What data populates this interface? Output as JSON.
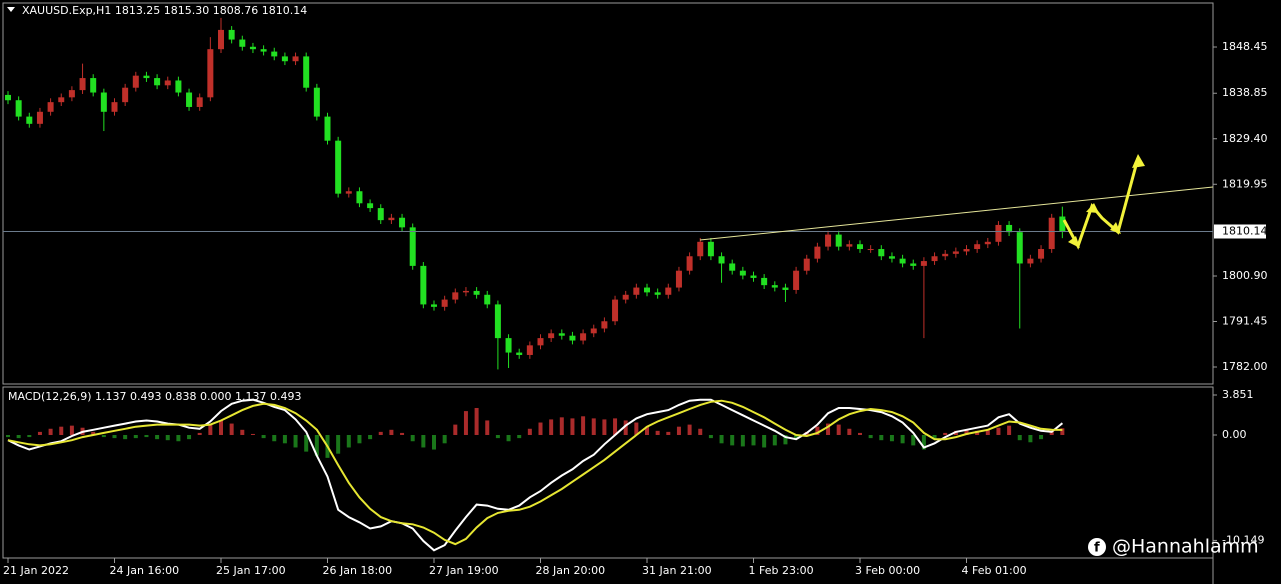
{
  "chart_data": [
    {
      "type": "candlestick",
      "title": "XAUUSD.Exp,H1  1813.25 1815.30 1808.76 1810.14",
      "categories": [
        "21 Jan 2022",
        null,
        null,
        null,
        null,
        null,
        null,
        null,
        null,
        null,
        "24 Jan 16:00",
        null,
        null,
        null,
        null,
        null,
        null,
        null,
        null,
        null,
        "25 Jan 17:00",
        null,
        null,
        null,
        null,
        null,
        null,
        null,
        null,
        null,
        "26 Jan 18:00",
        null,
        null,
        null,
        null,
        null,
        null,
        null,
        null,
        null,
        "27 Jan 19:00",
        null,
        null,
        null,
        null,
        null,
        null,
        null,
        null,
        null,
        "28 Jan 20:00",
        null,
        null,
        null,
        null,
        null,
        null,
        null,
        null,
        null,
        "31 Jan 21:00",
        null,
        null,
        null,
        null,
        null,
        null,
        null,
        null,
        null,
        "1 Feb 23:00",
        null,
        null,
        null,
        null,
        null,
        null,
        null,
        null,
        null,
        "3 Feb 00:00",
        null,
        null,
        null,
        null,
        null,
        null,
        null,
        null,
        null,
        "4 Feb 01:00",
        null,
        null,
        null,
        null,
        null,
        null,
        null,
        null,
        null
      ],
      "open": [
        1838.5,
        1837.4,
        1834,
        1832.5,
        1835,
        1837,
        1838,
        1839.5,
        1842,
        1839,
        1835,
        1837,
        1840,
        1842.5,
        1842,
        1840.5,
        1841.5,
        1839,
        1836,
        1838,
        1848,
        1852,
        1850,
        1848.5,
        1848,
        1847.5,
        1846.5,
        1845.5,
        1846.5,
        1840,
        1834,
        1829,
        1818,
        1818.5,
        1816,
        1815,
        1812.5,
        1813,
        1811,
        1803,
        1795,
        1794.5,
        1796,
        1797.5,
        1797.8,
        1797,
        1795,
        1788,
        1785,
        1784.5,
        1786.5,
        1788,
        1789,
        1788.5,
        1787.5,
        1789,
        1790,
        1791.5,
        1796,
        1797,
        1798.5,
        1797.5,
        1797,
        1798.5,
        1802,
        1805,
        1808,
        1805,
        1803.5,
        1802,
        1801,
        1800.5,
        1799,
        1798.5,
        1798,
        1802,
        1804.5,
        1807,
        1809.5,
        1807,
        1807.5,
        1806.5,
        1806.5,
        1805,
        1804.5,
        1803.5,
        1803,
        1804,
        1805,
        1805.5,
        1806,
        1806.5,
        1807.5,
        1808,
        1811.5,
        1810,
        1803.5,
        1804.5,
        1806.5,
        1813.25
      ],
      "high": [
        1839.3,
        1838.2,
        1834.8,
        1835.8,
        1837.8,
        1838.8,
        1840.3,
        1845,
        1842.8,
        1839.8,
        1837.8,
        1840.8,
        1843.3,
        1843.3,
        1842.8,
        1842.3,
        1842.3,
        1839.8,
        1838.8,
        1850.5,
        1854.5,
        1852.8,
        1850.8,
        1849.3,
        1848.8,
        1848.3,
        1847.3,
        1847.3,
        1847.3,
        1840.8,
        1834.8,
        1829.8,
        1819.3,
        1819.3,
        1816.8,
        1815.8,
        1813.8,
        1813.8,
        1811.8,
        1803.8,
        1795.8,
        1796.8,
        1798.3,
        1798.6,
        1798.6,
        1797.8,
        1795.8,
        1788.8,
        1785.8,
        1787.3,
        1788.8,
        1789.8,
        1789.8,
        1789.3,
        1789.8,
        1790.8,
        1792.3,
        1796.8,
        1797.8,
        1799.3,
        1799.3,
        1798.3,
        1799.3,
        1802.8,
        1805.8,
        1808.8,
        1808.8,
        1805.8,
        1804.3,
        1802.8,
        1801.8,
        1801.3,
        1799.8,
        1799.3,
        1802.8,
        1805.3,
        1807.8,
        1810.3,
        1810.3,
        1808.3,
        1808.3,
        1807.3,
        1807.3,
        1805.8,
        1805.3,
        1804.3,
        1804.8,
        1805.8,
        1806.3,
        1806.8,
        1807.3,
        1808.3,
        1808.8,
        1812.3,
        1812.3,
        1810.8,
        1805.3,
        1807.3,
        1813.8,
        1815.3
      ],
      "low": [
        1836.6,
        1833.2,
        1831.7,
        1831.7,
        1834.2,
        1836.2,
        1837.2,
        1838.7,
        1838.2,
        1831,
        1834.2,
        1836.2,
        1839.2,
        1841.2,
        1839.7,
        1839.7,
        1838.2,
        1835.2,
        1835.2,
        1837.2,
        1847.2,
        1849.2,
        1847.7,
        1847.2,
        1846.7,
        1845.7,
        1844.7,
        1844.7,
        1839.2,
        1833.2,
        1828.2,
        1817.2,
        1817.2,
        1815.2,
        1814.2,
        1811.7,
        1811.7,
        1810.2,
        1802.2,
        1794.2,
        1793.7,
        1793.7,
        1795.2,
        1796.7,
        1796.2,
        1794.2,
        1781.5,
        1781.8,
        1783.7,
        1783.7,
        1785.7,
        1787.2,
        1787.7,
        1786.7,
        1786.7,
        1788.2,
        1789.2,
        1790.7,
        1795.2,
        1796.2,
        1796.7,
        1796.2,
        1796.2,
        1797.7,
        1801.2,
        1804.2,
        1804.2,
        1799.5,
        1801.2,
        1800.2,
        1799.7,
        1798.2,
        1797.7,
        1795.5,
        1797.2,
        1801.2,
        1803.7,
        1806.2,
        1806.2,
        1806.2,
        1805.7,
        1805.7,
        1804.2,
        1803.7,
        1802.7,
        1802.2,
        1788,
        1803.2,
        1804.2,
        1804.7,
        1805.2,
        1805.7,
        1806.7,
        1807.2,
        1809.2,
        1790,
        1802.7,
        1803.7,
        1805.7,
        1808.76
      ],
      "close": [
        1837.4,
        1834,
        1832.5,
        1835,
        1837,
        1838,
        1839.5,
        1842,
        1839,
        1835,
        1837,
        1840,
        1842.5,
        1842,
        1840.5,
        1841.5,
        1839,
        1836,
        1838,
        1848,
        1852,
        1850,
        1848.5,
        1848,
        1847.5,
        1846.5,
        1845.5,
        1846.5,
        1840,
        1834,
        1829,
        1818,
        1818.5,
        1816,
        1815,
        1812.5,
        1813,
        1811,
        1803,
        1795,
        1794.5,
        1796,
        1797.5,
        1797.8,
        1797,
        1795,
        1788,
        1785,
        1784.5,
        1786.5,
        1788,
        1789,
        1788.5,
        1787.5,
        1789,
        1790,
        1791.5,
        1796,
        1797,
        1798.5,
        1797.5,
        1797,
        1798.5,
        1802,
        1805,
        1808,
        1805,
        1803.5,
        1802,
        1801,
        1800.5,
        1799,
        1798.5,
        1798,
        1802,
        1804.5,
        1807,
        1809.5,
        1807,
        1807.5,
        1806.5,
        1806.5,
        1805,
        1804.5,
        1803.5,
        1803,
        1804,
        1805,
        1805.5,
        1806,
        1806.5,
        1807.5,
        1808,
        1811.5,
        1810,
        1803.5,
        1804.5,
        1806.5,
        1813,
        1810.14
      ],
      "up_color": "#c0302a",
      "down_color": "#22e022",
      "current_price": 1810.14,
      "ylim": [
        1778.68,
        1857.59
      ],
      "yticks": [
        1848.45,
        1838.85,
        {
          "value": 1829.4,
          "label": "1829.40"
        },
        1819.95,
        {
          "value": 1800.9,
          "label": "1800.90"
        },
        1791.45,
        {
          "value": 1782,
          "label": "1782.00"
        }
      ]
    },
    {
      "type": "macd",
      "title": "MACD(12,26,9) 1.137 0.493 0.838 0.000 1.137 0.493",
      "series": [
        {
          "color": "#ffffff",
          "values": [
            -0.5,
            -1.0,
            -1.4,
            -1.1,
            -0.8,
            -0.6,
            -0.1,
            0.3,
            0.5,
            0.7,
            0.9,
            1.1,
            1.3,
            1.4,
            1.3,
            1.1,
            1.0,
            0.7,
            0.6,
            1.3,
            2.3,
            3.0,
            3.3,
            3.4,
            3.1,
            2.7,
            2.4,
            1.5,
            0.3,
            -2.0,
            -4.0,
            -7.2,
            -7.9,
            -8.4,
            -9.0,
            -8.8,
            -8.3,
            -8.5,
            -9.0,
            -10.2,
            -11.1,
            -10.6,
            -9.2,
            -7.9,
            -6.7,
            -6.8,
            -7.1,
            -7.2,
            -6.8,
            -6.0,
            -5.4,
            -4.6,
            -3.9,
            -3.3,
            -2.5,
            -1.9,
            -0.9,
            0.0,
            0.9,
            1.6,
            2.0,
            2.2,
            2.4,
            2.9,
            3.3,
            3.4,
            3.4,
            2.9,
            2.4,
            1.9,
            1.4,
            0.9,
            0.4,
            -0.2,
            -0.4,
            0.2,
            1.0,
            2.1,
            2.6,
            2.6,
            2.5,
            2.4,
            2.2,
            1.8,
            1.2,
            0.2,
            -1.2,
            -0.8,
            -0.2,
            0.3,
            0.5,
            0.7,
            0.9,
            1.7,
            2.0,
            1.1,
            0.7,
            0.4,
            0.3,
            1.137
          ]
        },
        {
          "color": "#e6e632",
          "values": [
            -0.5,
            -0.7,
            -0.9,
            -1.0,
            -0.9,
            -0.7,
            -0.5,
            -0.2,
            0.0,
            0.2,
            0.4,
            0.6,
            0.8,
            0.9,
            1.0,
            1.0,
            1.0,
            1.0,
            0.9,
            1.0,
            1.4,
            1.9,
            2.4,
            2.8,
            3.0,
            2.9,
            2.6,
            2.1,
            1.4,
            0.5,
            -1.1,
            -2.9,
            -4.6,
            -6.0,
            -7.1,
            -7.9,
            -8.3,
            -8.5,
            -8.6,
            -8.9,
            -9.4,
            -10.1,
            -10.5,
            -10.0,
            -8.9,
            -8.0,
            -7.5,
            -7.3,
            -7.2,
            -6.9,
            -6.4,
            -5.8,
            -5.2,
            -4.5,
            -3.8,
            -3.1,
            -2.4,
            -1.6,
            -0.8,
            0.0,
            0.8,
            1.3,
            1.7,
            2.1,
            2.5,
            2.9,
            3.2,
            3.3,
            3.1,
            2.7,
            2.2,
            1.7,
            1.1,
            0.5,
            0.0,
            -0.1,
            0.2,
            0.8,
            1.5,
            2.0,
            2.3,
            2.5,
            2.4,
            2.2,
            1.8,
            1.2,
            0.2,
            -0.4,
            -0.4,
            -0.2,
            0.1,
            0.3,
            0.5,
            0.9,
            1.3,
            1.2,
            0.9,
            0.6,
            0.5,
            0.493
          ]
        }
      ],
      "histogram": {
        "up_color": "#c83232",
        "down_color": "#1e8c1e",
        "values": [
          -0.2,
          -0.3,
          -0.2,
          0.3,
          0.6,
          0.8,
          0.9,
          0.7,
          0.3,
          -0.2,
          -0.3,
          -0.4,
          -0.3,
          -0.2,
          -0.4,
          -0.5,
          -0.6,
          -0.4,
          0.2,
          1.0,
          1.4,
          1.1,
          0.5,
          0.1,
          -0.3,
          -0.6,
          -0.8,
          -1.2,
          -1.6,
          -2.0,
          -2.2,
          -1.8,
          -1.2,
          -0.8,
          -0.4,
          0.3,
          0.5,
          0.2,
          -0.6,
          -1.2,
          -1.4,
          -0.8,
          1.0,
          2.3,
          2.6,
          1.4,
          -0.3,
          -0.6,
          -0.3,
          0.6,
          1.2,
          1.5,
          1.7,
          1.6,
          1.8,
          1.6,
          1.5,
          1.6,
          1.4,
          1.2,
          0.8,
          0.4,
          0.3,
          0.8,
          1.0,
          0.6,
          -0.3,
          -0.8,
          -1.0,
          -1.1,
          -1.0,
          -1.2,
          -1.0,
          -0.9,
          -0.4,
          0.3,
          0.8,
          1.1,
          1.0,
          0.6,
          0.2,
          -0.3,
          -0.5,
          -0.6,
          -0.8,
          -1.0,
          -1.4,
          -0.4,
          0.2,
          0.4,
          0.5,
          0.4,
          0.5,
          0.7,
          0.9,
          -0.5,
          -0.7,
          -0.4,
          0.3,
          0.644
        ]
      },
      "ylim": [
        -11.84,
        4.62
      ],
      "yticks": [
        3.851,
        {
          "value": 0,
          "label": "0.00"
        },
        -10.149
      ]
    }
  ],
  "watermark": "@Hannahlamm"
}
